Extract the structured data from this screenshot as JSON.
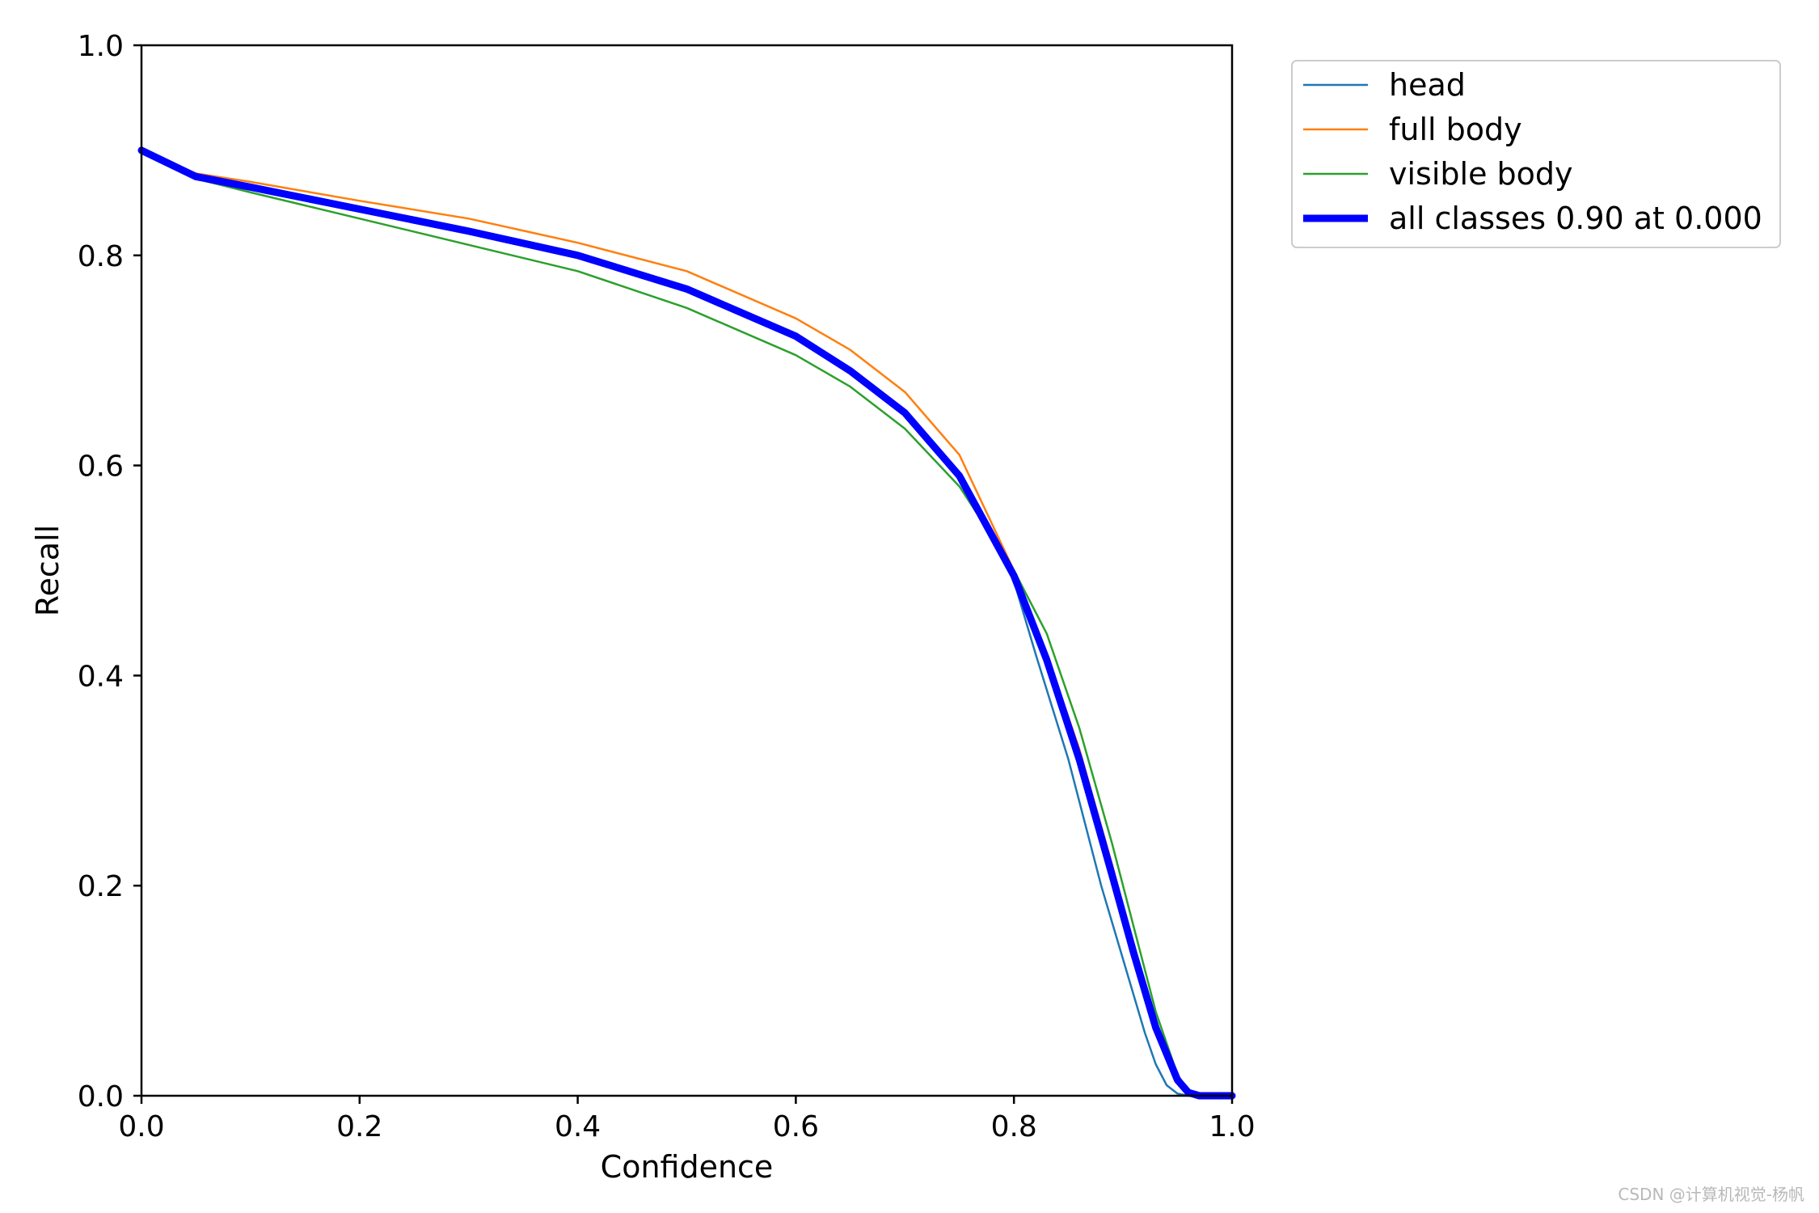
{
  "chart_data": {
    "type": "line",
    "title": "",
    "xlabel": "Confidence",
    "ylabel": "Recall",
    "xlim": [
      0.0,
      1.0
    ],
    "ylim": [
      0.0,
      1.0
    ],
    "xticks": [
      "0.0",
      "0.2",
      "0.4",
      "0.6",
      "0.8",
      "1.0"
    ],
    "yticks": [
      "0.0",
      "0.2",
      "0.4",
      "0.6",
      "0.8",
      "1.0"
    ],
    "grid": false,
    "legend_position": "outside-top-right",
    "series": [
      {
        "name": "head",
        "color": "#1f77b4",
        "x": [
          0.0,
          0.05,
          0.1,
          0.2,
          0.3,
          0.4,
          0.5,
          0.6,
          0.65,
          0.7,
          0.75,
          0.8,
          0.82,
          0.85,
          0.88,
          0.9,
          0.92,
          0.93,
          0.94,
          0.95,
          0.96,
          1.0
        ],
        "y": [
          0.9,
          0.875,
          0.865,
          0.845,
          0.825,
          0.8,
          0.77,
          0.725,
          0.69,
          0.65,
          0.59,
          0.49,
          0.42,
          0.32,
          0.2,
          0.13,
          0.06,
          0.03,
          0.01,
          0.002,
          0.0,
          0.0
        ]
      },
      {
        "name": "full body",
        "color": "#ff7f0e",
        "x": [
          0.0,
          0.05,
          0.1,
          0.2,
          0.3,
          0.4,
          0.5,
          0.6,
          0.65,
          0.7,
          0.75,
          0.8,
          0.83,
          0.86,
          0.89,
          0.91,
          0.93,
          0.95,
          0.96,
          0.97,
          1.0
        ],
        "y": [
          0.9,
          0.878,
          0.87,
          0.852,
          0.835,
          0.812,
          0.785,
          0.74,
          0.71,
          0.67,
          0.61,
          0.5,
          0.42,
          0.33,
          0.22,
          0.14,
          0.07,
          0.02,
          0.005,
          0.0,
          0.0
        ]
      },
      {
        "name": "visible body",
        "color": "#2ca02c",
        "x": [
          0.0,
          0.05,
          0.1,
          0.2,
          0.3,
          0.4,
          0.5,
          0.6,
          0.65,
          0.7,
          0.75,
          0.8,
          0.83,
          0.86,
          0.89,
          0.91,
          0.93,
          0.95,
          0.96,
          0.97,
          1.0
        ],
        "y": [
          0.9,
          0.873,
          0.86,
          0.835,
          0.81,
          0.785,
          0.75,
          0.705,
          0.675,
          0.635,
          0.58,
          0.5,
          0.44,
          0.35,
          0.24,
          0.16,
          0.08,
          0.02,
          0.004,
          0.0,
          0.0
        ]
      },
      {
        "name": "all classes 0.90 at 0.000",
        "color": "#0000ff",
        "x": [
          0.0,
          0.05,
          0.1,
          0.2,
          0.3,
          0.4,
          0.5,
          0.6,
          0.65,
          0.7,
          0.75,
          0.8,
          0.83,
          0.86,
          0.89,
          0.91,
          0.93,
          0.95,
          0.96,
          0.97,
          1.0
        ],
        "y": [
          0.9,
          0.875,
          0.865,
          0.844,
          0.823,
          0.8,
          0.768,
          0.723,
          0.69,
          0.65,
          0.59,
          0.495,
          0.415,
          0.32,
          0.21,
          0.135,
          0.065,
          0.015,
          0.003,
          0.0,
          0.0
        ]
      }
    ]
  },
  "watermark": "CSDN @计算机视觉-杨帆"
}
